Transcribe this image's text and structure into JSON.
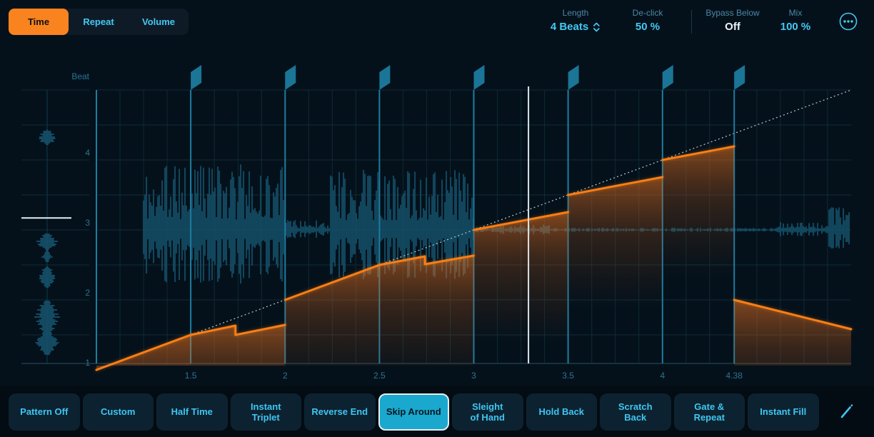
{
  "colors": {
    "accent_orange": "#f9821d",
    "accent_cyan": "#45c8f3",
    "dim_cyan_label": "#4d87a3",
    "axis_text": "#2d7391",
    "flag_teal": "#1e7ca0",
    "waveform_teal": "#15516a",
    "selected_pattern_bg": "#1aa8cf",
    "playhead_white": "#dde6ea",
    "identity_dotted": "#b9c7ce"
  },
  "tabs": {
    "items": [
      {
        "id": "time",
        "label": "Time",
        "selected": true
      },
      {
        "id": "repeat",
        "label": "Repeat",
        "selected": false
      },
      {
        "id": "volume",
        "label": "Volume",
        "selected": false
      }
    ]
  },
  "header": {
    "params": [
      {
        "id": "length",
        "label": "Length",
        "value": "4 Beats",
        "stepper": true
      },
      {
        "id": "de-click",
        "label": "De-click",
        "value": "50 %"
      },
      {
        "id": "bypass-below",
        "label": "Bypass Below",
        "value": "Off",
        "white_value": true,
        "separator_before": true
      },
      {
        "id": "mix",
        "label": "Mix",
        "value": "100 %"
      }
    ],
    "more_options_icon": "ellipsis-in-circle"
  },
  "chart": {
    "axis": {
      "y_title": "Beat",
      "y_ticks": [
        {
          "value": 1,
          "label": "1"
        },
        {
          "value": 2,
          "label": "2"
        },
        {
          "value": 3,
          "label": "3"
        },
        {
          "value": 4,
          "label": "4"
        }
      ],
      "x_ticks": [
        {
          "beat": 1.5,
          "label": "1.5"
        },
        {
          "beat": 2,
          "label": "2"
        },
        {
          "beat": 2.5,
          "label": "2.5"
        },
        {
          "beat": 3,
          "label": "3"
        },
        {
          "beat": 3.5,
          "label": "3.5"
        },
        {
          "beat": 4,
          "label": "4"
        },
        {
          "beat": 4.38,
          "label": "4.38"
        }
      ],
      "x_range": [
        1,
        5
      ],
      "y_range": [
        1,
        5
      ]
    },
    "boundaries_beats": [
      1.5,
      2,
      2.5,
      3,
      3.5,
      4,
      4.38
    ],
    "playhead_beat": 3.29,
    "source_playhead_beat": 3.17,
    "identity_line": {
      "from_beat": [
        1,
        1
      ],
      "to_beat": [
        5,
        5
      ],
      "style": "dotted"
    },
    "curve_segments": [
      {
        "points": [
          [
            1.0,
            1.0
          ],
          [
            1.5,
            1.5
          ]
        ]
      },
      {
        "points": [
          [
            1.5,
            1.5
          ],
          [
            1.737,
            1.633
          ],
          [
            1.737,
            1.5
          ],
          [
            2.0,
            1.643
          ]
        ]
      },
      {
        "points": [
          [
            2.0,
            2.0
          ],
          [
            2.5,
            2.5
          ]
        ]
      },
      {
        "points": [
          [
            2.5,
            2.5
          ],
          [
            2.741,
            2.622
          ],
          [
            2.741,
            2.51
          ],
          [
            3.0,
            2.633
          ]
        ]
      },
      {
        "points": [
          [
            3.0,
            3.0
          ],
          [
            3.5,
            3.255
          ]
        ]
      },
      {
        "points": [
          [
            3.5,
            3.5
          ],
          [
            4.0,
            3.755
          ]
        ]
      },
      {
        "points": [
          [
            4.0,
            4.0
          ],
          [
            4.38,
            4.194
          ]
        ]
      },
      {
        "points": [
          [
            4.38,
            2.0
          ],
          [
            5.0,
            1.582
          ]
        ]
      }
    ],
    "output_waveform_envelope": [
      {
        "from": 1.25,
        "to": 2.0,
        "amp": 92
      },
      {
        "from": 2.0,
        "to": 2.24,
        "amp": 14
      },
      {
        "from": 2.24,
        "to": 3.0,
        "amp": 86
      },
      {
        "from": 3.0,
        "to": 3.14,
        "amp": 4
      },
      {
        "from": 3.14,
        "to": 3.4,
        "amp": 8
      },
      {
        "from": 3.4,
        "to": 4.6,
        "amp": 3
      },
      {
        "from": 4.6,
        "to": 4.88,
        "amp": 11
      },
      {
        "from": 4.88,
        "to": 5.0,
        "amp": 32
      }
    ],
    "source_waveform_blobs": [
      {
        "from": 4.22,
        "to": 4.43,
        "amp": 14
      },
      {
        "from": 2.71,
        "to": 2.95,
        "amp": 16
      },
      {
        "from": 2.54,
        "to": 2.71,
        "amp": 8
      },
      {
        "from": 2.17,
        "to": 2.48,
        "amp": 12
      },
      {
        "from": 1.49,
        "to": 2.0,
        "amp": 18
      },
      {
        "from": 1.21,
        "to": 1.54,
        "amp": 17
      }
    ]
  },
  "patterns": {
    "items": [
      "Pattern Off",
      "Custom",
      "Half Time",
      "Instant\nTriplet",
      "Reverse End",
      "Skip Around",
      "Sleight\nof Hand",
      "Hold Back",
      "Scratch\nBack",
      "Gate &\nRepeat",
      "Instant Fill"
    ],
    "selected": "Skip Around",
    "edit_icon": "pencil"
  }
}
